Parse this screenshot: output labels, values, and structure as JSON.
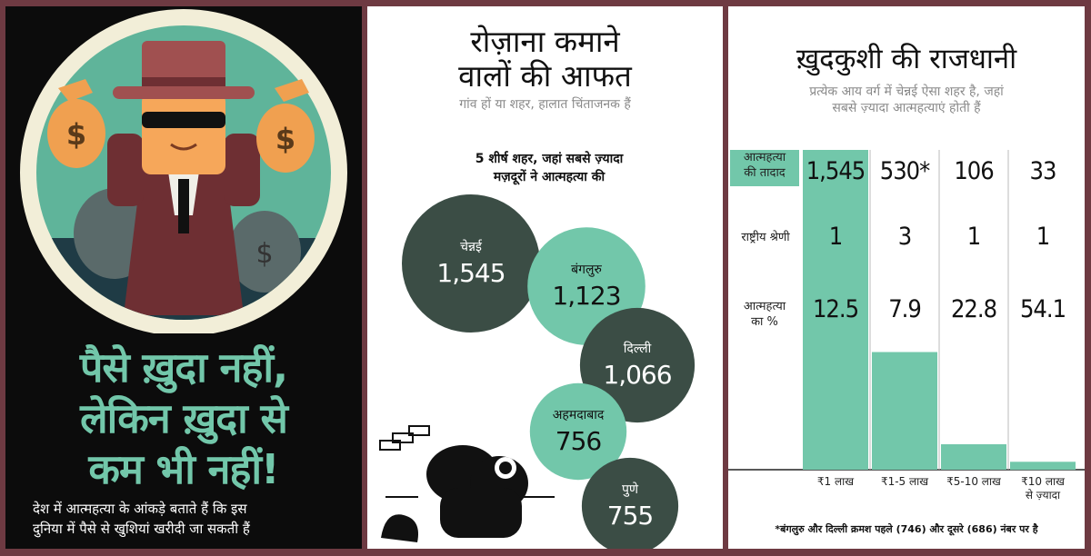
{
  "panel1": {
    "headline_lines": [
      "पैसे ख़ुदा नहीं,",
      "लेकिन ख़ुदा से",
      "कम भी नहीं!"
    ],
    "subtext_lines": [
      "देश में आत्महत्या के आंकड़े बताते हैं कि इस",
      "दुनिया में पैसे से खुशियां खरीदी जा सकती हैं"
    ],
    "bag_symbol": "$",
    "colors": {
      "accent": "#72c7aa",
      "background": "#0c0c0c"
    }
  },
  "panel2": {
    "title_lines": [
      "रोज़ाना कमाने",
      "वालों की आफत"
    ],
    "subtitle": "गांव हों या शहर, हालात चिंताजनक हैं",
    "caption_lines": [
      "5 शीर्ष शहर, जहां सबसे ज़्यादा",
      "मज़दूरों ने आत्महत्या की"
    ],
    "colors": {
      "dark": "#3b4d45",
      "light": "#72c7aa"
    }
  },
  "panel3": {
    "title": "ख़ुदकुशी की राजधानी",
    "subtitle_lines": [
      "प्रत्येक आय वर्ग में चेन्नई ऐसा शहर है, जहां",
      "सबसे ज़्यादा आत्महत्याएं होती हैं"
    ],
    "row_labels": {
      "count": [
        "आत्महत्या",
        "की तादाद"
      ],
      "rank": [
        "राष्ट्रीय श्रेणी"
      ],
      "percent": [
        "आत्महत्या",
        "का %"
      ]
    },
    "footnote": "*बंगलुरु और दिल्ली क्रमश पहले (746) और दूसरे (686) नंबर पर है",
    "colors": {
      "bar": "#72c7aa"
    }
  },
  "chart_data": [
    {
      "type": "scatter",
      "title": "5 शीर्ष शहर, जहां सबसे ज़्यादा मज़दूरों ने आत्महत्या की",
      "categories": [
        "चेन्नई",
        "बंगलुरु",
        "दिल्ली",
        "अहमदाबाद",
        "पुणे"
      ],
      "values": [
        1545,
        1123,
        1066,
        756,
        755
      ],
      "labels": [
        "1,545",
        "1,123",
        "1,066",
        "756",
        "755"
      ]
    },
    {
      "type": "bar",
      "title": "ख़ुदकुशी की राजधानी",
      "categories": [
        [
          "₹1 लाख"
        ],
        [
          "₹1-5 लाख"
        ],
        [
          "₹5-10 लाख"
        ],
        [
          "₹10 लाख",
          "से ज़्यादा"
        ]
      ],
      "counts": [
        "1,545",
        "530*",
        "106",
        "33"
      ],
      "ranks": [
        "1",
        "3",
        "1",
        "1"
      ],
      "percent_labels": [
        "12.5",
        "7.9",
        "22.8",
        "54.1"
      ],
      "values": [
        100,
        37,
        8,
        2.5
      ],
      "ylim": [
        0,
        100
      ]
    }
  ]
}
